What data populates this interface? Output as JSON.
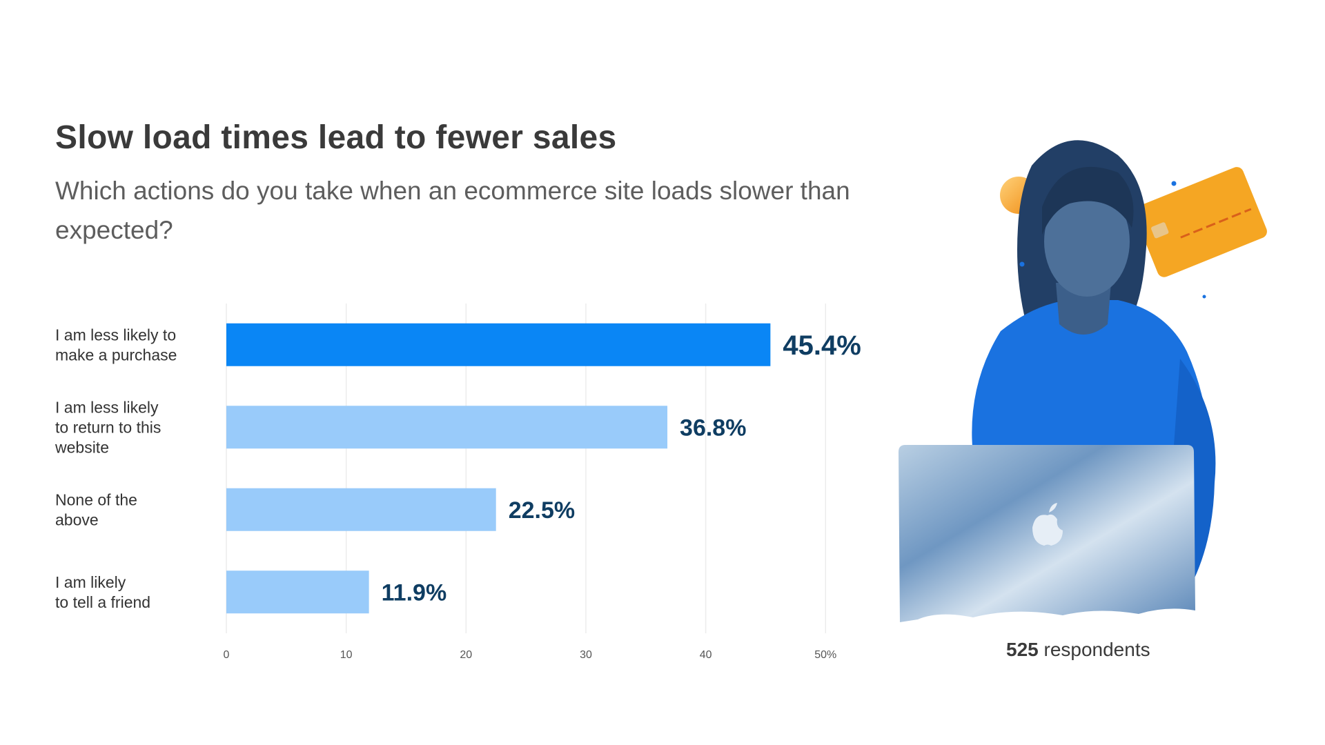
{
  "header": {
    "title": "Slow load times lead to fewer sales",
    "subtitle": "Which actions do you take when an ecommerce site loads slower than expected?"
  },
  "chart_data": {
    "type": "bar",
    "orientation": "horizontal",
    "categories": [
      "I am less likely to make a purchase",
      "I am less likely to return to this website",
      "None of the above",
      "I am likely to tell a friend"
    ],
    "category_lines": [
      [
        "I am less likely to",
        "make a purchase"
      ],
      [
        "I am less likely",
        "to return to this",
        "website"
      ],
      [
        "None of the",
        "above"
      ],
      [
        "I am likely",
        "to tell a friend"
      ]
    ],
    "values": [
      45.4,
      36.8,
      22.5,
      11.9
    ],
    "value_labels": [
      "45.4%",
      "36.8%",
      "22.5%",
      "11.9%"
    ],
    "xlim": [
      0,
      52
    ],
    "ticks": [
      0,
      10,
      20,
      30,
      40,
      50
    ],
    "tick_labels": [
      "0",
      "10",
      "20",
      "30",
      "40",
      "50%"
    ],
    "grid": true,
    "colors": {
      "highlight": "#0a86f5",
      "bar": "#99cbfa",
      "value_label": "#0f3d62",
      "grid": "#ececec"
    }
  },
  "respondents": {
    "count": "525",
    "label": "respondents"
  },
  "illustration": {
    "icon": "person-with-laptop-icon",
    "laptop_logo": "apple-logo-icon",
    "card_icon": "credit-card-icon",
    "colors": {
      "shirt": "#1a72e0",
      "card": "#f5a623",
      "orb": "#f4a31a",
      "laptop": "#8fb2d1"
    }
  }
}
